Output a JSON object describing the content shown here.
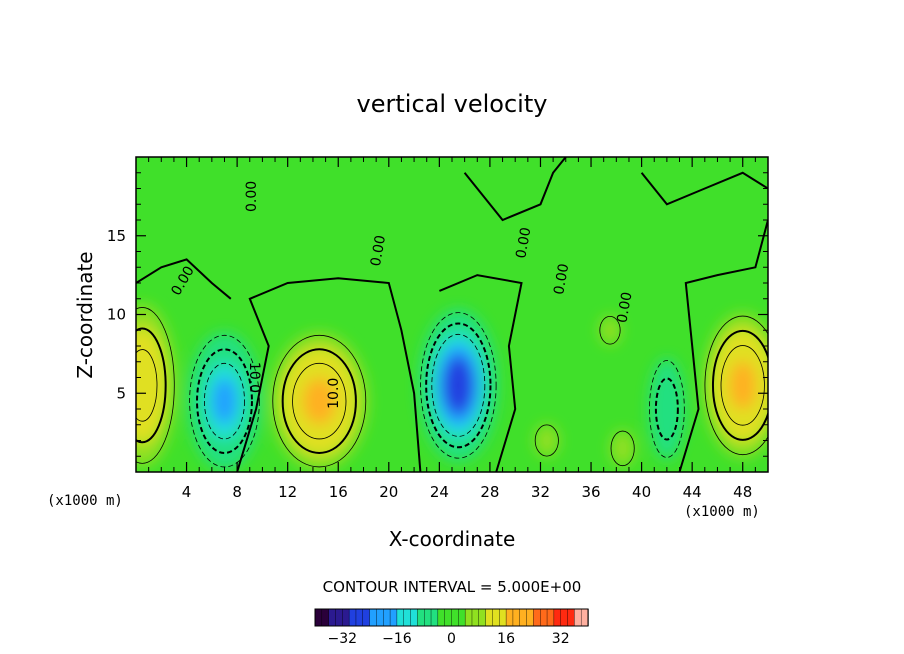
{
  "chart_data": {
    "type": "heatmap",
    "subtype": "filled contour",
    "title": "vertical velocity",
    "xlabel": "X-coordinate",
    "ylabel": "Z-coordinate",
    "x_unit": "(x1000 m)",
    "z_unit": "(x1000 m)",
    "xlim": [
      0,
      50
    ],
    "ylim": [
      0,
      20
    ],
    "x_ticks": [
      4,
      8,
      12,
      16,
      20,
      24,
      28,
      32,
      36,
      40,
      44,
      48
    ],
    "y_ticks": [
      5,
      10,
      15
    ],
    "contour_interval_text": "CONTOUR INTERVAL = 5.000E+00",
    "contour_labels": [
      "0.00",
      "0.00",
      "0.00",
      "0.00",
      "0.00",
      "0.00",
      "10.0",
      "10.0"
    ],
    "colorbar": {
      "range": [
        -40,
        40
      ],
      "ticks": [
        -32,
        -16,
        0,
        16,
        32
      ],
      "colors": [
        "#2a003a",
        "#2b1a90",
        "#2040e0",
        "#21a0ff",
        "#20e0d8",
        "#22e080",
        "#40e02a",
        "#90e020",
        "#e0e020",
        "#ffb020",
        "#ff6a1a",
        "#ff2a10",
        "#ffb0a0"
      ]
    },
    "features": [
      {
        "kind": "updraft",
        "x": 0.5,
        "z": 5.5,
        "peak": 15
      },
      {
        "kind": "downdraft",
        "x": 7,
        "z": 4.5,
        "peak": -20
      },
      {
        "kind": "updraft",
        "x": 14.5,
        "z": 4.5,
        "peak": 20
      },
      {
        "kind": "downdraft",
        "x": 25.5,
        "z": 5.5,
        "peak": -30
      },
      {
        "kind": "updraft",
        "x": 32.5,
        "z": 2,
        "peak": 5
      },
      {
        "kind": "updraft",
        "x": 38.5,
        "z": 1.5,
        "peak": 5
      },
      {
        "kind": "updraft",
        "x": 37.5,
        "z": 9,
        "peak": 5
      },
      {
        "kind": "downdraft",
        "x": 42,
        "z": 4,
        "peak": -10
      },
      {
        "kind": "updraft",
        "x": 48,
        "z": 5.5,
        "peak": 20
      }
    ]
  }
}
